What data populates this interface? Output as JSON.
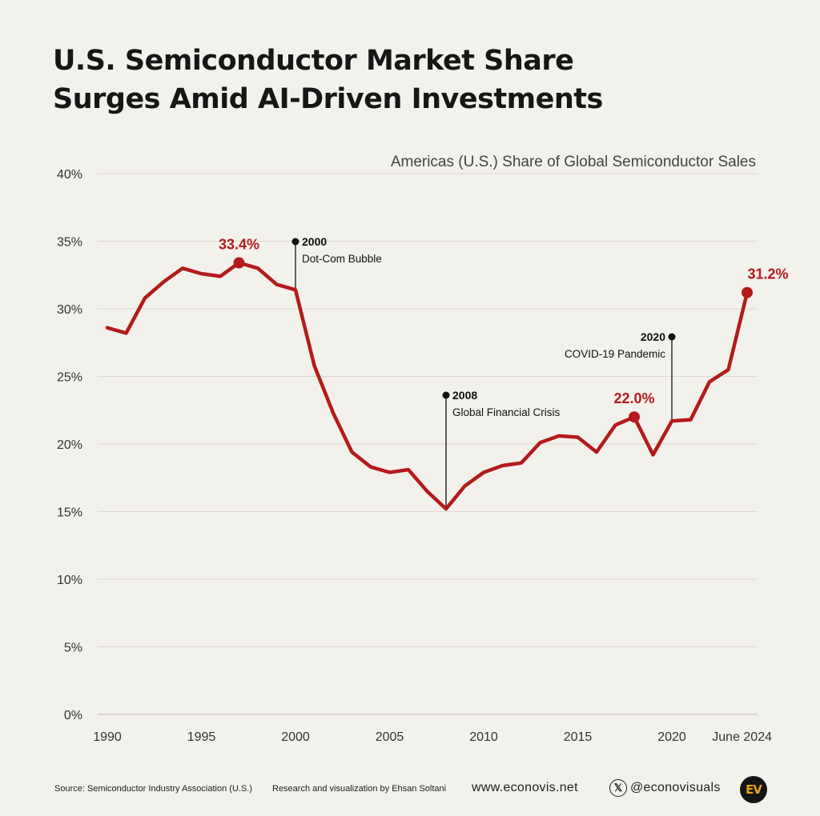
{
  "title": {
    "line1": "U.S. Semiconductor Market Share",
    "line2": "Surges Amid AI-Driven Investments"
  },
  "colors": {
    "line": "#b31b1b",
    "background": "#f3f1ec",
    "grid": "#dcd9d2",
    "text": "#1a1a1a"
  },
  "chart_data": {
    "type": "line",
    "title": "Americas (U.S.) Share of Global Semiconductor Sales",
    "xlabel": "",
    "ylabel": "",
    "ylim": [
      0,
      40
    ],
    "grid": true,
    "y_ticks": [
      "0%",
      "5%",
      "10%",
      "15%",
      "20%",
      "25%",
      "30%",
      "35%",
      "40%"
    ],
    "x_ticks": [
      "1990",
      "1995",
      "2000",
      "2005",
      "2010",
      "2015",
      "2020",
      "June 2024"
    ],
    "series": [
      {
        "name": "",
        "x": [
          "1990",
          "1991",
          "1992",
          "1993",
          "1994",
          "1995",
          "1996",
          "1997",
          "1998",
          "1999",
          "2000",
          "2001",
          "2002",
          "2003",
          "2004",
          "2005",
          "2006",
          "2007",
          "2008",
          "2009",
          "2010",
          "2011",
          "2012",
          "2013",
          "2014",
          "2015",
          "2016",
          "2017",
          "2018",
          "2019",
          "2020",
          "2021",
          "2022",
          "2023",
          "June 2024"
        ],
        "values": [
          28.6,
          28.2,
          30.8,
          32.0,
          33.0,
          32.6,
          32.4,
          33.4,
          33.0,
          31.8,
          31.4,
          25.8,
          22.3,
          19.4,
          18.3,
          17.9,
          18.1,
          16.5,
          15.2,
          16.9,
          17.9,
          18.4,
          18.6,
          20.1,
          20.6,
          20.5,
          19.4,
          21.4,
          22.0,
          19.2,
          21.7,
          21.8,
          24.6,
          25.5,
          31.2
        ]
      }
    ],
    "highlights": [
      {
        "x": "1997",
        "value": 33.4,
        "label": "33.4%"
      },
      {
        "x": "2018",
        "value": 22.0,
        "label": "22.0%"
      },
      {
        "x": "June 2024",
        "value": 31.2,
        "label": "31.2%"
      }
    ],
    "annotations": [
      {
        "year": "2000",
        "event": "Dot-Com Bubble"
      },
      {
        "year": "2008",
        "event": "Global Financial Crisis"
      },
      {
        "year": "2020",
        "event": "COVID-19 Pandemic"
      }
    ]
  },
  "footer": {
    "source": "Source: Semiconductor Industry Association (U.S.)",
    "credit": "Research and visualization by Ehsan Soltani",
    "website": "www.econovis.net",
    "x_icon": "x-logo-icon",
    "handle": "@econovisuals",
    "logo_text": "EV"
  }
}
